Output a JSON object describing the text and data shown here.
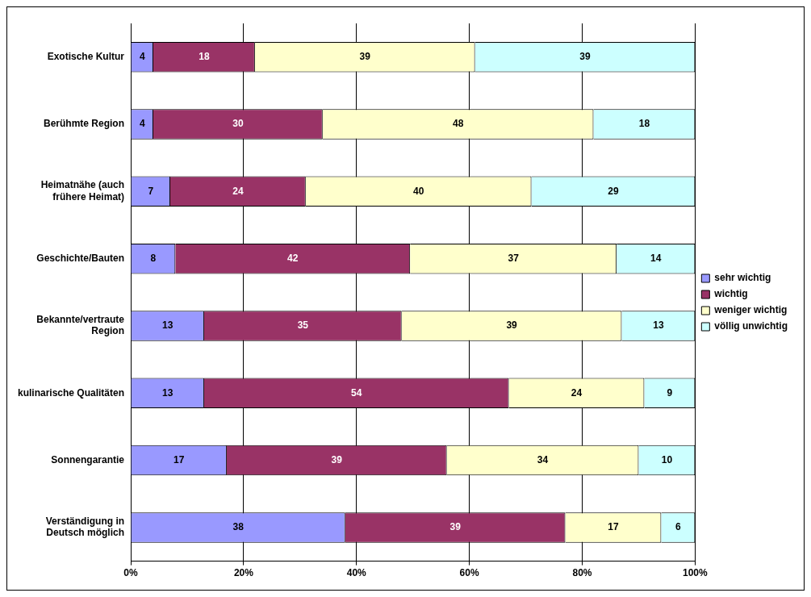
{
  "chart_data": {
    "type": "bar",
    "orientation": "horizontal",
    "stacked": true,
    "categories": [
      "Exotische Kultur",
      "Berühmte Region",
      "Heimatnähe (auch\nfrühere Heimat)",
      "Geschichte/Bauten",
      "Bekannte/vertraute\nRegion",
      "kulinarische Qualitäten",
      "Sonnengarantie",
      "Verständigung in\nDeutsch möglich"
    ],
    "series": [
      {
        "name": "sehr wichtig",
        "color": "#9999ff",
        "values": [
          4,
          4,
          7,
          7.9,
          13,
          13,
          17,
          38
        ],
        "value_labels": [
          "4",
          "4",
          "7",
          "8",
          "13",
          "13",
          "17",
          "38"
        ]
      },
      {
        "name": "wichtig",
        "color": "#993366",
        "values": [
          18,
          30,
          24,
          41.6,
          35,
          54,
          39,
          39
        ],
        "value_labels": [
          "18",
          "30",
          "24",
          "42",
          "35",
          "54",
          "39",
          "39"
        ]
      },
      {
        "name": "weniger wichtig",
        "color": "#ffffcc",
        "values": [
          39,
          48,
          40,
          36.6,
          39,
          24,
          34,
          17
        ],
        "value_labels": [
          "39",
          "48",
          "40",
          "37",
          "39",
          "24",
          "34",
          "17"
        ]
      },
      {
        "name": "völlig unwichtig",
        "color": "#ccffff",
        "values": [
          39,
          18,
          29,
          13.9,
          13,
          9,
          10,
          6
        ],
        "value_labels": [
          "39",
          "18",
          "29",
          "14",
          "13",
          "9",
          "10",
          "6"
        ]
      }
    ],
    "xlim": [
      0,
      100
    ],
    "xticks": [
      {
        "value": 0,
        "label": "0%"
      },
      {
        "value": 20,
        "label": "20%"
      },
      {
        "value": 40,
        "label": "40%"
      },
      {
        "value": 60,
        "label": "60%"
      },
      {
        "value": 80,
        "label": "80%"
      },
      {
        "value": 100,
        "label": "100%"
      }
    ],
    "grid": "x",
    "legend": "right"
  }
}
